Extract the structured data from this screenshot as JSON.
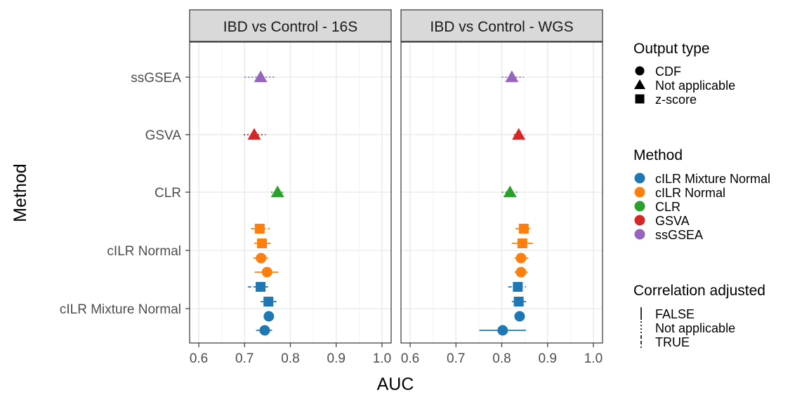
{
  "chart_data": {
    "type": "scatter",
    "ylabel": "Method",
    "xlabel": "AUC",
    "xlim": [
      0.58,
      1.02
    ],
    "x_ticks": [
      "0.6",
      "0.7",
      "0.8",
      "0.9",
      "1.0"
    ],
    "x_tick_values": [
      0.6,
      0.7,
      0.8,
      0.9,
      1.0
    ],
    "categories": [
      "ssGSEA",
      "GSVA",
      "CLR",
      "cILR Normal",
      "cILR Mixture Normal"
    ],
    "grid": true,
    "legend_position": "right",
    "panels": [
      {
        "title": "IBD vs Control - 16S",
        "points": [
          {
            "method": "ssGSEA",
            "output": "Not applicable",
            "corr": "Not applicable",
            "auc": 0.735,
            "lo": 0.7,
            "hi": 0.768
          },
          {
            "method": "GSVA",
            "output": "Not applicable",
            "corr": "Not applicable",
            "auc": 0.721,
            "lo": 0.698,
            "hi": 0.746
          },
          {
            "method": "CLR",
            "output": "Not applicable",
            "corr": "Not applicable",
            "auc": 0.772,
            "lo": 0.758,
            "hi": 0.786
          },
          {
            "method": "cILR Normal",
            "output": "z-score",
            "corr": "TRUE",
            "auc": 0.733,
            "lo": 0.714,
            "hi": 0.755
          },
          {
            "method": "cILR Normal",
            "output": "z-score",
            "corr": "FALSE",
            "auc": 0.738,
            "lo": 0.721,
            "hi": 0.757
          },
          {
            "method": "cILR Normal",
            "output": "CDF",
            "corr": "TRUE",
            "auc": 0.736,
            "lo": 0.719,
            "hi": 0.756
          },
          {
            "method": "cILR Normal",
            "output": "CDF",
            "corr": "FALSE",
            "auc": 0.749,
            "lo": 0.722,
            "hi": 0.774
          },
          {
            "method": "cILR Mixture Normal",
            "output": "z-score",
            "corr": "TRUE",
            "auc": 0.735,
            "lo": 0.707,
            "hi": 0.755
          },
          {
            "method": "cILR Mixture Normal",
            "output": "z-score",
            "corr": "FALSE",
            "auc": 0.752,
            "lo": 0.735,
            "hi": 0.77
          },
          {
            "method": "cILR Mixture Normal",
            "output": "CDF",
            "corr": "TRUE",
            "auc": 0.753,
            "lo": 0.742,
            "hi": 0.764
          },
          {
            "method": "cILR Mixture Normal",
            "output": "CDF",
            "corr": "FALSE",
            "auc": 0.744,
            "lo": 0.725,
            "hi": 0.76
          }
        ]
      },
      {
        "title": "IBD vs Control - WGS",
        "points": [
          {
            "method": "ssGSEA",
            "output": "Not applicable",
            "corr": "Not applicable",
            "auc": 0.822,
            "lo": 0.8,
            "hi": 0.848
          },
          {
            "method": "GSVA",
            "output": "Not applicable",
            "corr": "Not applicable",
            "auc": 0.837,
            "lo": 0.826,
            "hi": 0.85
          },
          {
            "method": "CLR",
            "output": "Not applicable",
            "corr": "Not applicable",
            "auc": 0.818,
            "lo": 0.8,
            "hi": 0.838
          },
          {
            "method": "cILR Normal",
            "output": "z-score",
            "corr": "TRUE",
            "auc": 0.848,
            "lo": 0.83,
            "hi": 0.866
          },
          {
            "method": "cILR Normal",
            "output": "z-score",
            "corr": "FALSE",
            "auc": 0.845,
            "lo": 0.822,
            "hi": 0.868
          },
          {
            "method": "cILR Normal",
            "output": "CDF",
            "corr": "TRUE",
            "auc": 0.842,
            "lo": 0.828,
            "hi": 0.858
          },
          {
            "method": "cILR Normal",
            "output": "CDF",
            "corr": "FALSE",
            "auc": 0.842,
            "lo": 0.828,
            "hi": 0.857
          },
          {
            "method": "cILR Mixture Normal",
            "output": "z-score",
            "corr": "TRUE",
            "auc": 0.835,
            "lo": 0.814,
            "hi": 0.853
          },
          {
            "method": "cILR Mixture Normal",
            "output": "z-score",
            "corr": "FALSE",
            "auc": 0.837,
            "lo": 0.822,
            "hi": 0.853
          },
          {
            "method": "cILR Mixture Normal",
            "output": "CDF",
            "corr": "TRUE",
            "auc": 0.839,
            "lo": 0.832,
            "hi": 0.847
          },
          {
            "method": "cILR Mixture Normal",
            "output": "CDF",
            "corr": "FALSE",
            "auc": 0.802,
            "lo": 0.751,
            "hi": 0.853
          }
        ]
      }
    ],
    "legends": [
      {
        "title": "Output type",
        "kind": "shape",
        "entries": [
          {
            "label": "CDF",
            "shape": "circle"
          },
          {
            "label": "Not applicable",
            "shape": "triangle"
          },
          {
            "label": "z-score",
            "shape": "square"
          }
        ]
      },
      {
        "title": "Method",
        "kind": "color",
        "entries": [
          {
            "label": "cILR Mixture Normal",
            "color": "#1F77B4"
          },
          {
            "label": "cILR Normal",
            "color": "#FF7F0E"
          },
          {
            "label": "CLR",
            "color": "#2CA02C"
          },
          {
            "label": "GSVA",
            "color": "#D62728"
          },
          {
            "label": "ssGSEA",
            "color": "#9467BD"
          }
        ]
      },
      {
        "title": "Correlation adjusted",
        "kind": "linetype",
        "entries": [
          {
            "label": "FALSE",
            "dash": "solid"
          },
          {
            "label": "Not applicable",
            "dash": "dotted"
          },
          {
            "label": "TRUE",
            "dash": "dashed"
          }
        ]
      }
    ]
  }
}
